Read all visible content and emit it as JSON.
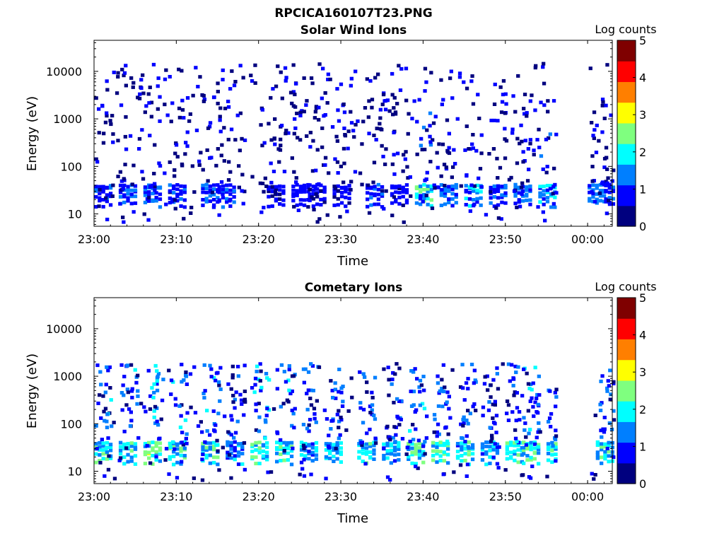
{
  "figure": {
    "title": "RPCICA160107T23.PNG"
  },
  "colormap": [
    "#00007f",
    "#0000ff",
    "#007fff",
    "#00ffff",
    "#7fff7f",
    "#ffff00",
    "#ff7f00",
    "#ff0000",
    "#7f0000"
  ],
  "chart_data": [
    {
      "type": "heatmap",
      "title": "Solar Wind Ions",
      "xlabel": "Time",
      "ylabel": "Energy (eV)",
      "x_range": [
        "23:00",
        "00:03"
      ],
      "x_ticks": [
        "23:00",
        "23:10",
        "23:20",
        "23:30",
        "23:40",
        "23:50",
        "00:00"
      ],
      "y_scale": "log",
      "y_range": [
        5.5,
        45000
      ],
      "y_ticks": [
        10,
        100,
        1000,
        10000
      ],
      "y_tick_labels": [
        "10",
        "100",
        "1000",
        "10000"
      ],
      "data_gap": [
        "23:56",
        "00:00"
      ],
      "colorbar": {
        "label": "Log counts",
        "range": [
          0,
          5
        ],
        "ticks": [
          "0",
          "1",
          "2",
          "3",
          "4",
          "5"
        ]
      },
      "bursts": [
        {
          "t": "23:00",
          "log_counts_peak": 1.2
        },
        {
          "t": "23:03",
          "log_counts_peak": 1.3
        },
        {
          "t": "23:06",
          "log_counts_peak": 1.5
        },
        {
          "t": "23:09",
          "log_counts_peak": 1.2
        },
        {
          "t": "23:13",
          "log_counts_peak": 1.4
        },
        {
          "t": "23:15",
          "log_counts_peak": 1.3
        },
        {
          "t": "23:21",
          "log_counts_peak": 1.0
        },
        {
          "t": "23:24",
          "log_counts_peak": 1.1
        },
        {
          "t": "23:26",
          "log_counts_peak": 1.0
        },
        {
          "t": "23:29",
          "log_counts_peak": 1.0
        },
        {
          "t": "23:33",
          "log_counts_peak": 1.2
        },
        {
          "t": "23:36",
          "log_counts_peak": 1.0
        },
        {
          "t": "23:39",
          "log_counts_peak": 2.8
        },
        {
          "t": "23:42",
          "log_counts_peak": 1.6
        },
        {
          "t": "23:45",
          "log_counts_peak": 2.0
        },
        {
          "t": "23:48",
          "log_counts_peak": 1.3
        },
        {
          "t": "23:51",
          "log_counts_peak": 1.5
        },
        {
          "t": "23:54",
          "log_counts_peak": 1.9
        },
        {
          "t": "00:00",
          "log_counts_peak": 1.6
        },
        {
          "t": "00:02",
          "log_counts_peak": 1.2
        }
      ]
    },
    {
      "type": "heatmap",
      "title": "Cometary Ions",
      "xlabel": "Time",
      "ylabel": "Energy (eV)",
      "x_range": [
        "23:00",
        "00:03"
      ],
      "x_ticks": [
        "23:00",
        "23:10",
        "23:20",
        "23:30",
        "23:40",
        "23:50",
        "00:00"
      ],
      "y_scale": "log",
      "y_range": [
        5.5,
        45000
      ],
      "y_ticks": [
        10,
        100,
        1000,
        10000
      ],
      "y_tick_labels": [
        "10",
        "100",
        "1000",
        "10000"
      ],
      "data_gap": [
        "23:56",
        "00:00"
      ],
      "colorbar": {
        "label": "Log counts",
        "range": [
          0,
          5
        ],
        "ticks": [
          "0",
          "1",
          "2",
          "3",
          "4",
          "5"
        ]
      },
      "bursts": [
        {
          "t": "23:00",
          "log_counts_peak": 2.6
        },
        {
          "t": "23:03",
          "log_counts_peak": 2.4
        },
        {
          "t": "23:06",
          "log_counts_peak": 2.9
        },
        {
          "t": "23:09",
          "log_counts_peak": 2.6
        },
        {
          "t": "23:13",
          "log_counts_peak": 2.6
        },
        {
          "t": "23:16",
          "log_counts_peak": 1.8
        },
        {
          "t": "23:19",
          "log_counts_peak": 2.7
        },
        {
          "t": "23:22",
          "log_counts_peak": 2.4
        },
        {
          "t": "23:25",
          "log_counts_peak": 2.1
        },
        {
          "t": "23:28",
          "log_counts_peak": 2.3
        },
        {
          "t": "23:32",
          "log_counts_peak": 2.4
        },
        {
          "t": "23:35",
          "log_counts_peak": 2.2
        },
        {
          "t": "23:38",
          "log_counts_peak": 2.6
        },
        {
          "t": "23:41",
          "log_counts_peak": 2.6
        },
        {
          "t": "23:44",
          "log_counts_peak": 2.4
        },
        {
          "t": "23:47",
          "log_counts_peak": 1.9
        },
        {
          "t": "23:50",
          "log_counts_peak": 2.6
        },
        {
          "t": "23:52",
          "log_counts_peak": 2.8
        },
        {
          "t": "23:55",
          "log_counts_peak": 2.5
        },
        {
          "t": "00:01",
          "log_counts_peak": 2.4
        }
      ]
    }
  ]
}
